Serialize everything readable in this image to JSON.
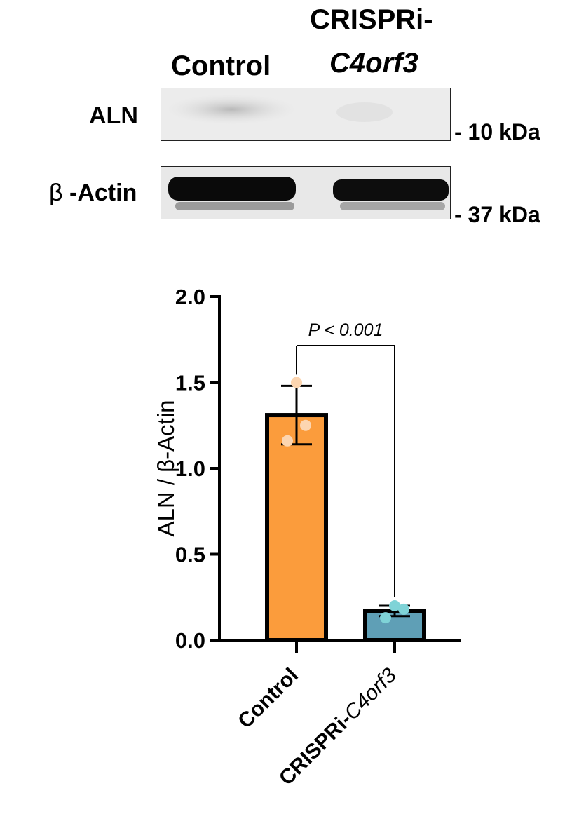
{
  "blot": {
    "lanes": [
      "Control",
      "CRISPRi-",
      "C4orf3"
    ],
    "rows": [
      {
        "label": "ALN",
        "marker": "- 10 kDa"
      },
      {
        "label_symbol": "β",
        "label_text": "-Actin",
        "marker": "- 37 kDa"
      }
    ]
  },
  "chart_data": {
    "type": "bar",
    "categories": [
      "Control",
      "CRISPRi-C4orf3"
    ],
    "category_parts": [
      {
        "plain": "Control",
        "italic": ""
      },
      {
        "plain": "CRISPRi-",
        "italic": "C4orf3"
      }
    ],
    "values": [
      1.31,
      0.17
    ],
    "error": [
      0.17,
      0.03
    ],
    "points": [
      [
        1.5,
        1.16,
        1.25
      ],
      [
        0.2,
        0.13,
        0.18
      ]
    ],
    "ylabel": "ALN / β-Actin",
    "ylim": [
      0,
      2.0
    ],
    "yticks": [
      "0.0",
      "0.5",
      "1.0",
      "1.5",
      "2.0"
    ],
    "ytick_values": [
      0,
      0.5,
      1.0,
      1.5,
      2.0
    ],
    "annotation": "P < 0.001",
    "colors": {
      "bar_fill": [
        "#fb9c3c",
        "#5f9fb6"
      ],
      "points": [
        "#fcd5b0",
        "#7fd3d7"
      ],
      "bar_edge": "#000000"
    }
  }
}
